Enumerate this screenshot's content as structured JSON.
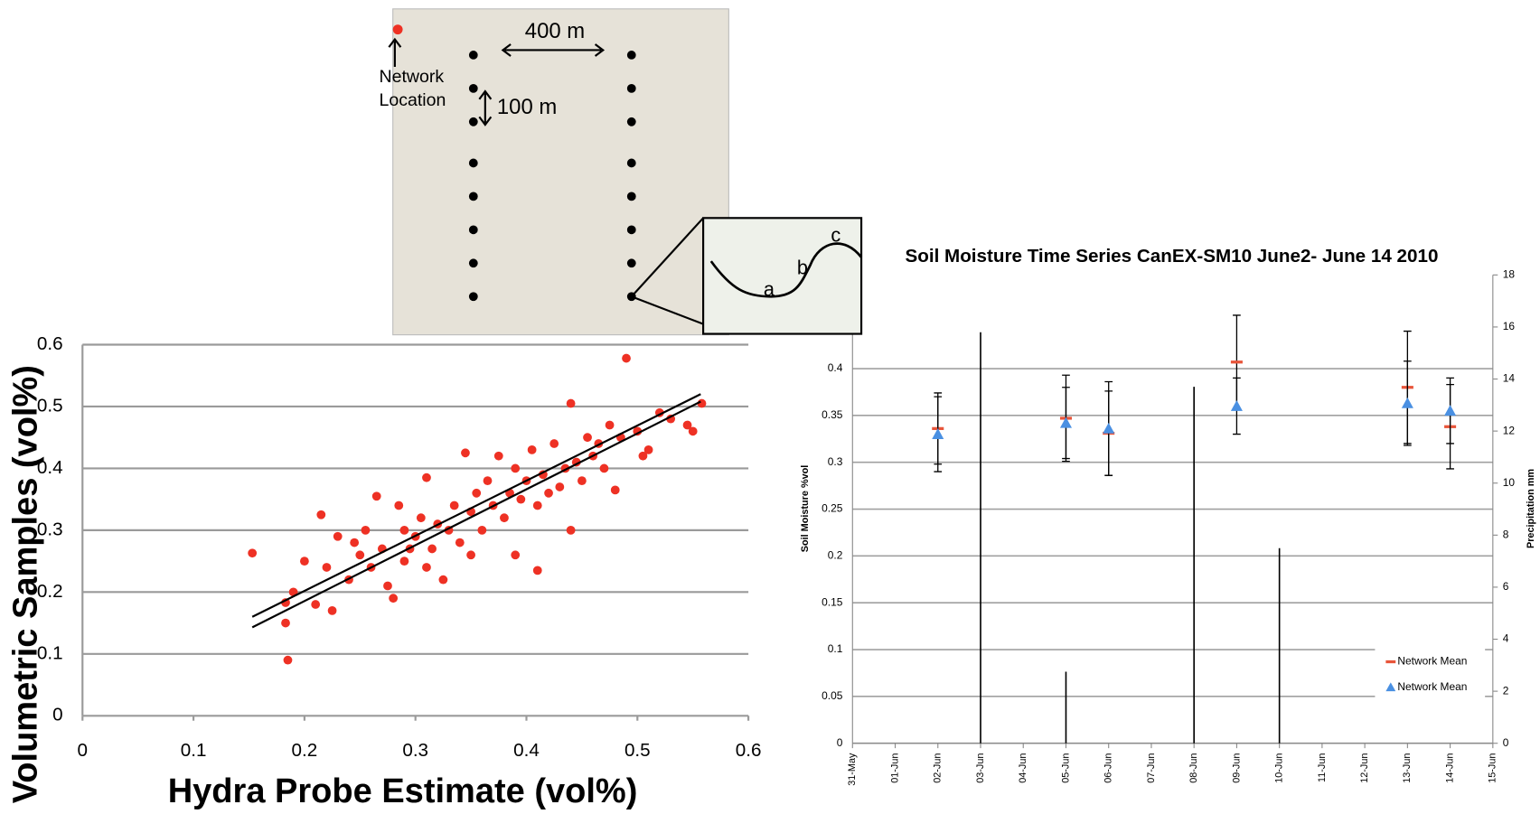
{
  "diagram": {
    "distance_label": "400 m",
    "spacing_label": "100 m",
    "network_label": [
      "Network",
      "Location"
    ],
    "profile_labels": [
      "a",
      "b",
      "c"
    ]
  },
  "chart_data": [
    {
      "type": "scatter",
      "xlabel": "Hydra Probe Estimate (vol%)",
      "ylabel": "Volumetric Samples (vol%)",
      "xlim": [
        0,
        0.6
      ],
      "ylim": [
        0,
        0.6
      ],
      "xticks": [
        0,
        0.1,
        0.2,
        0.3,
        0.4,
        0.5,
        0.6
      ],
      "yticks": [
        0,
        0.1,
        0.2,
        0.3,
        0.4,
        0.5,
        0.6
      ],
      "grid": true,
      "series": [
        {
          "color": "#ee3124",
          "x": [
            0.153,
            0.183,
            0.183,
            0.185,
            0.19,
            0.2,
            0.21,
            0.215,
            0.22,
            0.225,
            0.23,
            0.24,
            0.245,
            0.25,
            0.255,
            0.26,
            0.265,
            0.27,
            0.275,
            0.28,
            0.285,
            0.29,
            0.29,
            0.295,
            0.3,
            0.305,
            0.31,
            0.31,
            0.315,
            0.32,
            0.325,
            0.33,
            0.335,
            0.34,
            0.345,
            0.35,
            0.35,
            0.355,
            0.36,
            0.365,
            0.37,
            0.375,
            0.38,
            0.385,
            0.39,
            0.39,
            0.395,
            0.4,
            0.405,
            0.41,
            0.41,
            0.415,
            0.42,
            0.425,
            0.43,
            0.435,
            0.44,
            0.44,
            0.445,
            0.45,
            0.455,
            0.46,
            0.465,
            0.47,
            0.475,
            0.48,
            0.485,
            0.49,
            0.5,
            0.505,
            0.51,
            0.52,
            0.53,
            0.545,
            0.55,
            0.558
          ],
          "values": [
            0.263,
            0.183,
            0.15,
            0.09,
            0.2,
            0.25,
            0.18,
            0.325,
            0.24,
            0.17,
            0.29,
            0.22,
            0.28,
            0.26,
            0.3,
            0.24,
            0.355,
            0.27,
            0.21,
            0.19,
            0.34,
            0.25,
            0.3,
            0.27,
            0.29,
            0.32,
            0.385,
            0.24,
            0.27,
            0.31,
            0.22,
            0.3,
            0.34,
            0.28,
            0.425,
            0.33,
            0.26,
            0.36,
            0.3,
            0.38,
            0.34,
            0.42,
            0.32,
            0.36,
            0.4,
            0.26,
            0.35,
            0.38,
            0.43,
            0.34,
            0.235,
            0.39,
            0.36,
            0.44,
            0.37,
            0.4,
            0.505,
            0.3,
            0.41,
            0.38,
            0.45,
            0.42,
            0.44,
            0.4,
            0.47,
            0.365,
            0.45,
            0.578,
            0.46,
            0.42,
            0.43,
            0.49,
            0.48,
            0.47,
            0.46,
            0.505
          ]
        }
      ],
      "lines": [
        {
          "color": "#000000",
          "x": [
            0.153,
            0.557
          ],
          "values": [
            0.16,
            0.52
          ]
        },
        {
          "color": "#000000",
          "x": [
            0.153,
            0.557
          ],
          "values": [
            0.143,
            0.508
          ]
        }
      ]
    },
    {
      "type": "errorbar",
      "title": "Soil Moisture Time Series CanEX-SM10 June2- June 14 2010",
      "ylabel": "Soil Moisture %vol",
      "y2label": "Precipitation mm",
      "categories": [
        "31-May",
        "01-Jun",
        "02-Jun",
        "03-Jun",
        "04-Jun",
        "05-Jun",
        "06-Jun",
        "07-Jun",
        "08-Jun",
        "09-Jun",
        "10-Jun",
        "11-Jun",
        "12-Jun",
        "13-Jun",
        "14-Jun",
        "15-Jun"
      ],
      "ylim": [
        0,
        0.5
      ],
      "yticks": [
        0,
        0.05,
        0.1,
        0.15,
        0.2,
        0.25,
        0.3,
        0.35,
        0.4
      ],
      "y2lim": [
        0,
        18
      ],
      "y2ticks": [
        0,
        2,
        4,
        6,
        8,
        10,
        12,
        14,
        16,
        18
      ],
      "grid": true,
      "legend": "lower right",
      "series": [
        {
          "name": "Network Mean",
          "color": "#e8553a",
          "marker": "dash",
          "values": [
            null,
            null,
            0.336,
            null,
            null,
            0.347,
            0.331,
            null,
            null,
            0.407,
            null,
            null,
            null,
            0.38,
            0.338,
            null
          ],
          "errors": [
            null,
            null,
            0.038,
            null,
            null,
            0.046,
            0.045,
            null,
            null,
            0.05,
            null,
            null,
            null,
            0.06,
            0.045,
            null
          ]
        },
        {
          "name": "Network Mean",
          "color": "#4a90e2",
          "marker": "triangle",
          "values": [
            null,
            null,
            0.33,
            null,
            null,
            0.342,
            0.336,
            null,
            null,
            0.36,
            null,
            null,
            null,
            0.363,
            0.355,
            null
          ],
          "errors": [
            null,
            null,
            0.04,
            null,
            null,
            0.038,
            0.05,
            null,
            null,
            0.03,
            null,
            null,
            null,
            0.045,
            0.035,
            null
          ]
        },
        {
          "axis": "y2",
          "color": "#000000",
          "marker": "bar",
          "values": [
            null,
            null,
            null,
            15.8,
            null,
            2.75,
            null,
            null,
            13.7,
            null,
            7.5,
            null,
            null,
            null,
            null,
            null
          ]
        }
      ]
    }
  ]
}
